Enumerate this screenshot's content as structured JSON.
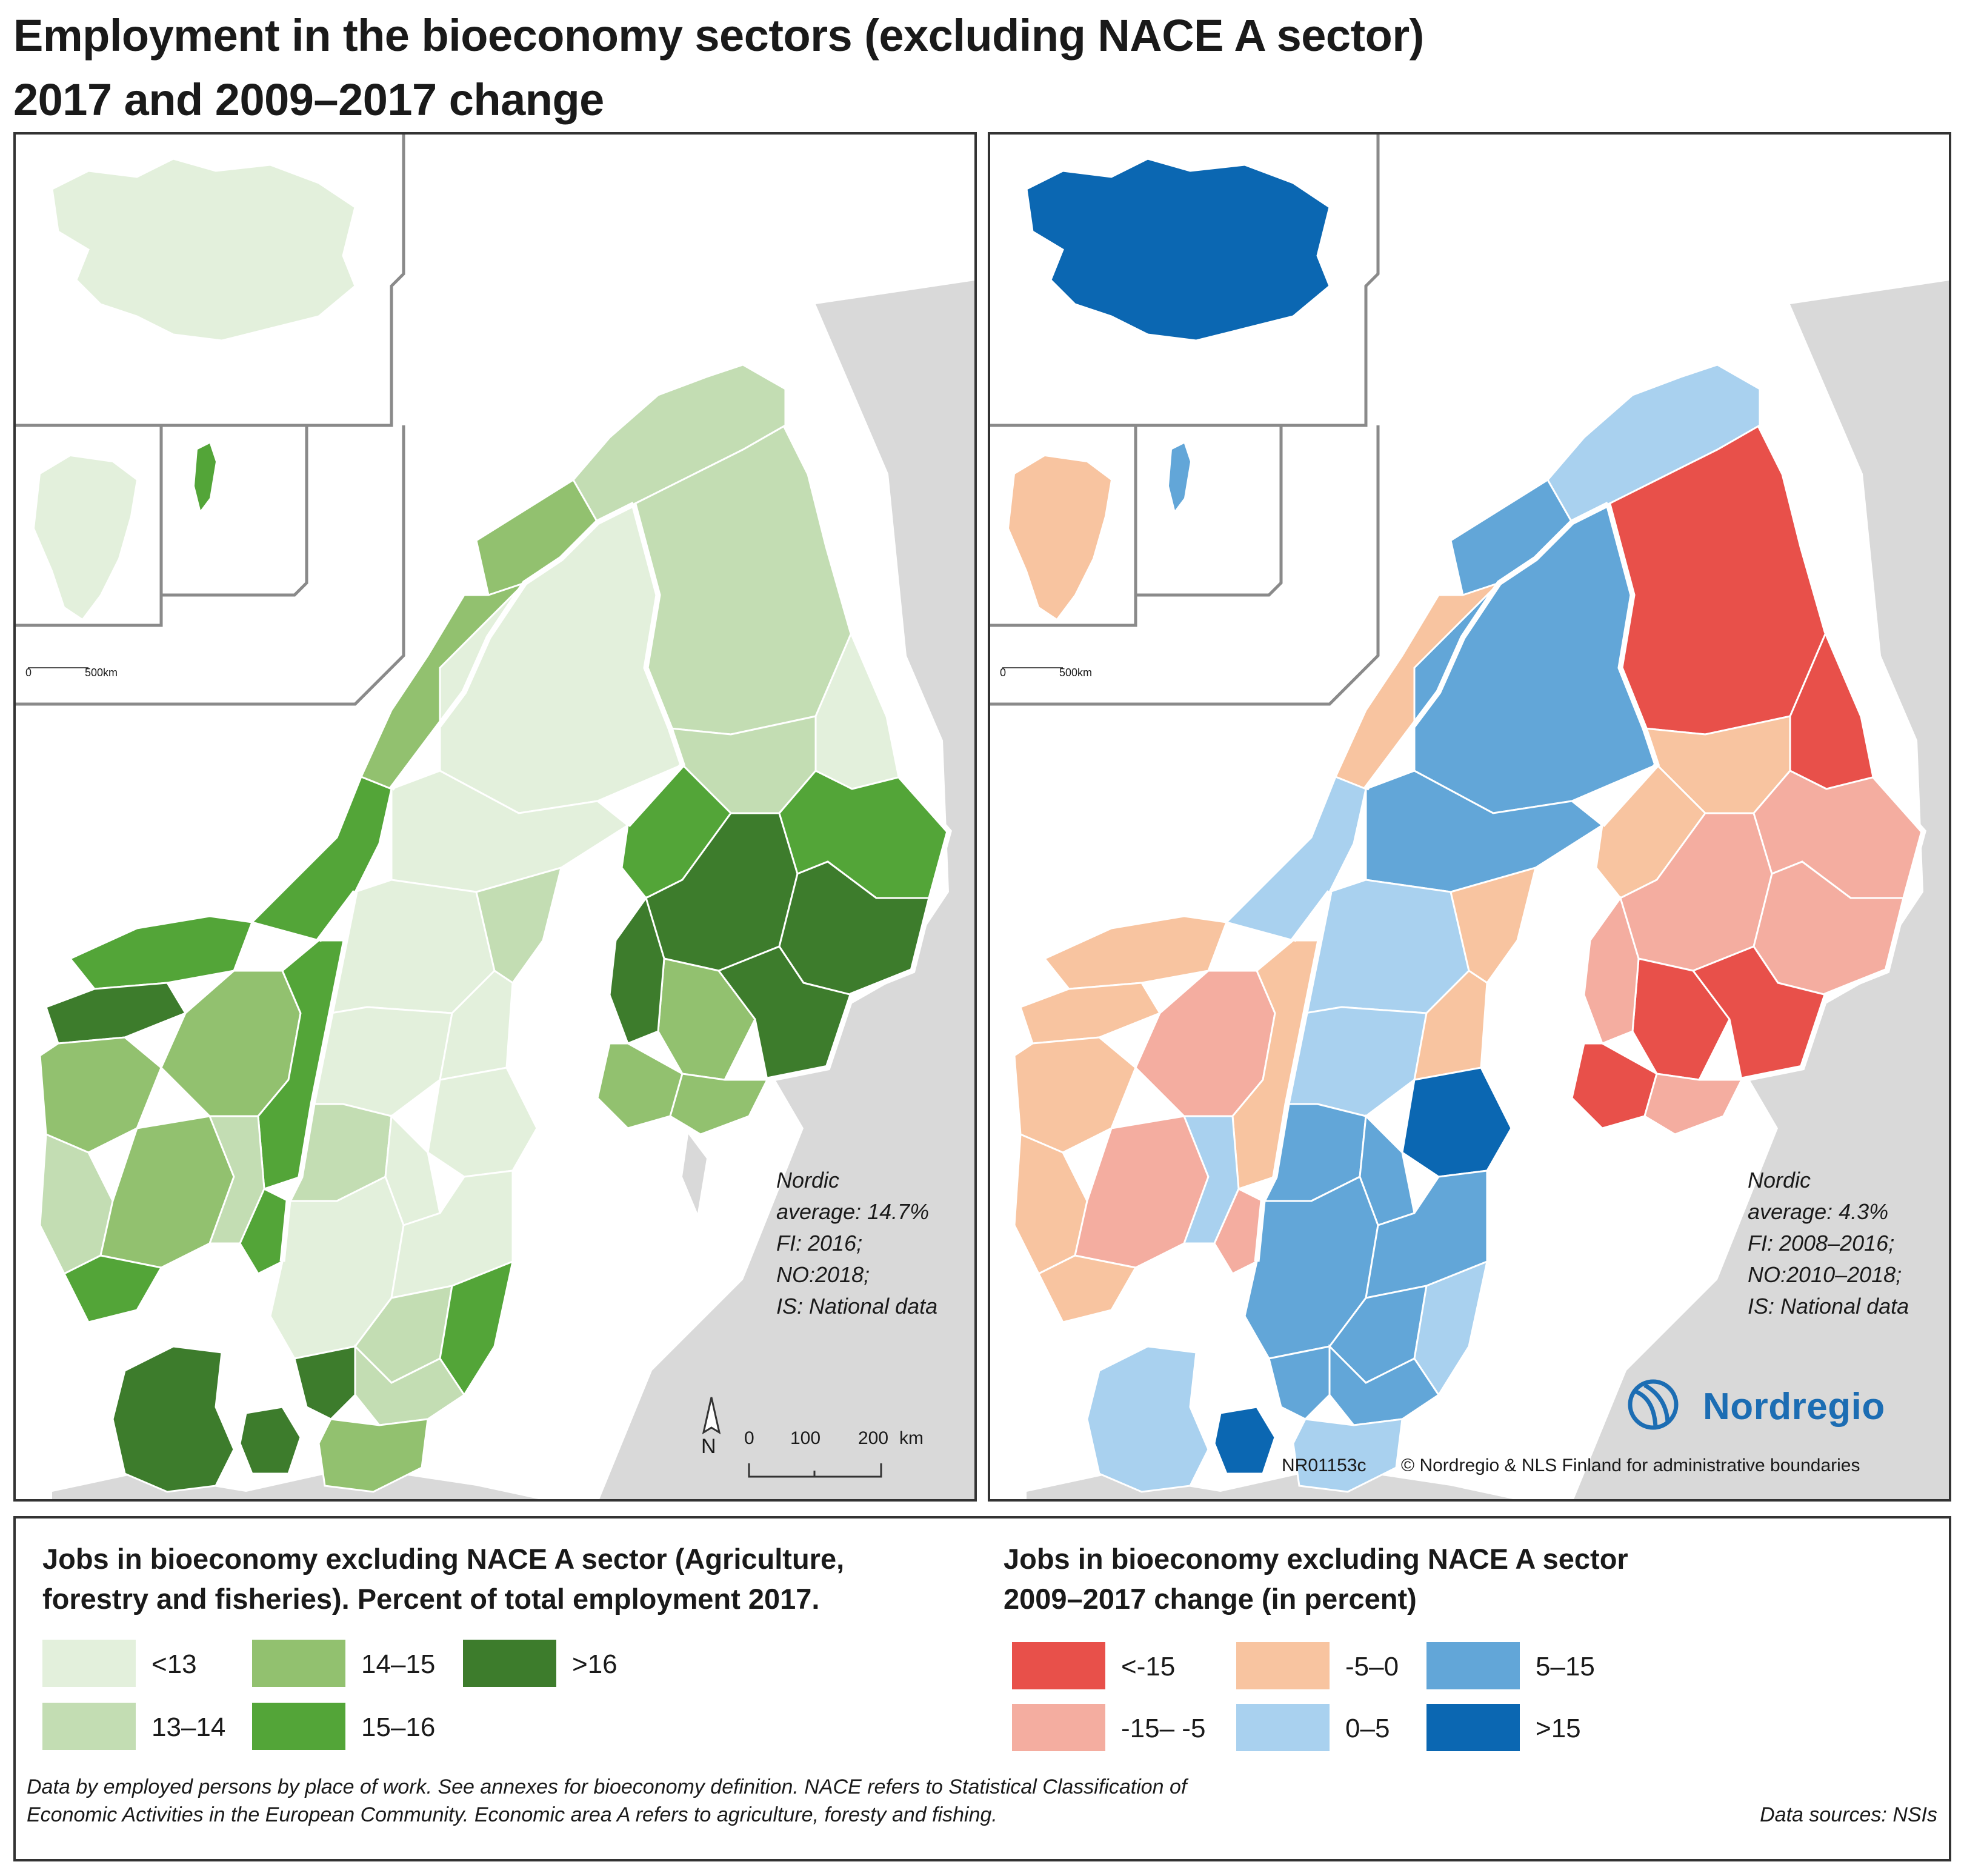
{
  "title": {
    "line1": "Employment in the bioeconomy sectors (excluding NACE A sector)",
    "line2": "2017 and 2009–2017 change"
  },
  "colors": {
    "sea": "#ffffff",
    "outside_land": "#d9d9d9",
    "country_border": "#ffffff",
    "green_scale": [
      "#e3f0dc",
      "#c3ddb3",
      "#92c16f",
      "#53a538",
      "#3d7c2c"
    ],
    "change_scale": [
      "#e8504a",
      "#f4ada0",
      "#f8c4a0",
      "#a9d1ef",
      "#62a6d8",
      "#0b67b2"
    ]
  },
  "left_map": {
    "insets": {
      "iceland_class": "<13",
      "greenland_class": "<13",
      "faroe_class": "15–16",
      "scale_zero": "0",
      "scale_label": "500km"
    },
    "note": [
      "Nordic",
      "average: 14.7%",
      "FI: 2016;",
      "NO:2018;",
      "IS: National data"
    ],
    "north_label": "N",
    "scalebar": {
      "ticks": [
        "0",
        "100",
        "200"
      ],
      "unit": "km"
    }
  },
  "right_map": {
    "insets": {
      "iceland_class": ">15",
      "greenland_class": "-5–0",
      "faroe_class": "5–15",
      "scale_zero": "0",
      "scale_label": "500km"
    },
    "note": [
      "Nordic",
      "average: 4.3%",
      "FI: 2008–2016;",
      "NO:2010–2018;",
      "IS: National data"
    ],
    "logo_text": "Nordregio",
    "map_id": "NR01153c",
    "credit": "© Nordregio & NLS Finland for administrative boundaries"
  },
  "legend_left": {
    "title_line1": "Jobs in bioeconomy excluding NACE A sector (Agriculture,",
    "title_line2": "forestry and fisheries). Percent of total employment 2017.",
    "items": [
      {
        "label": "<13",
        "color": "#e3f0dc"
      },
      {
        "label": "13–14",
        "color": "#c3ddb3"
      },
      {
        "label": "14–15",
        "color": "#92c16f"
      },
      {
        "label": "15–16",
        "color": "#53a538"
      },
      {
        "label": ">16",
        "color": "#3d7c2c"
      }
    ]
  },
  "legend_right": {
    "title_line1": "Jobs in bioeconomy excluding NACE A sector",
    "title_line2": "2009–2017 change (in percent)",
    "items": [
      {
        "label": "<-15",
        "color": "#e8504a"
      },
      {
        "label": "-15– -5",
        "color": "#f4ada0"
      },
      {
        "label": "-5–0",
        "color": "#f8c4a0"
      },
      {
        "label": "0–5",
        "color": "#a9d1ef"
      },
      {
        "label": "5–15",
        "color": "#62a6d8"
      },
      {
        "label": ">15",
        "color": "#0b67b2"
      }
    ]
  },
  "footnote": {
    "line1": "Data by employed persons by place of work. See annexes for bioeconomy definition. NACE refers to Statistical Classification of",
    "line2": "Economic Activities in the European Community. Economic area A refers to agriculture, foresty and fishing.",
    "source": "Data sources: NSIs"
  }
}
